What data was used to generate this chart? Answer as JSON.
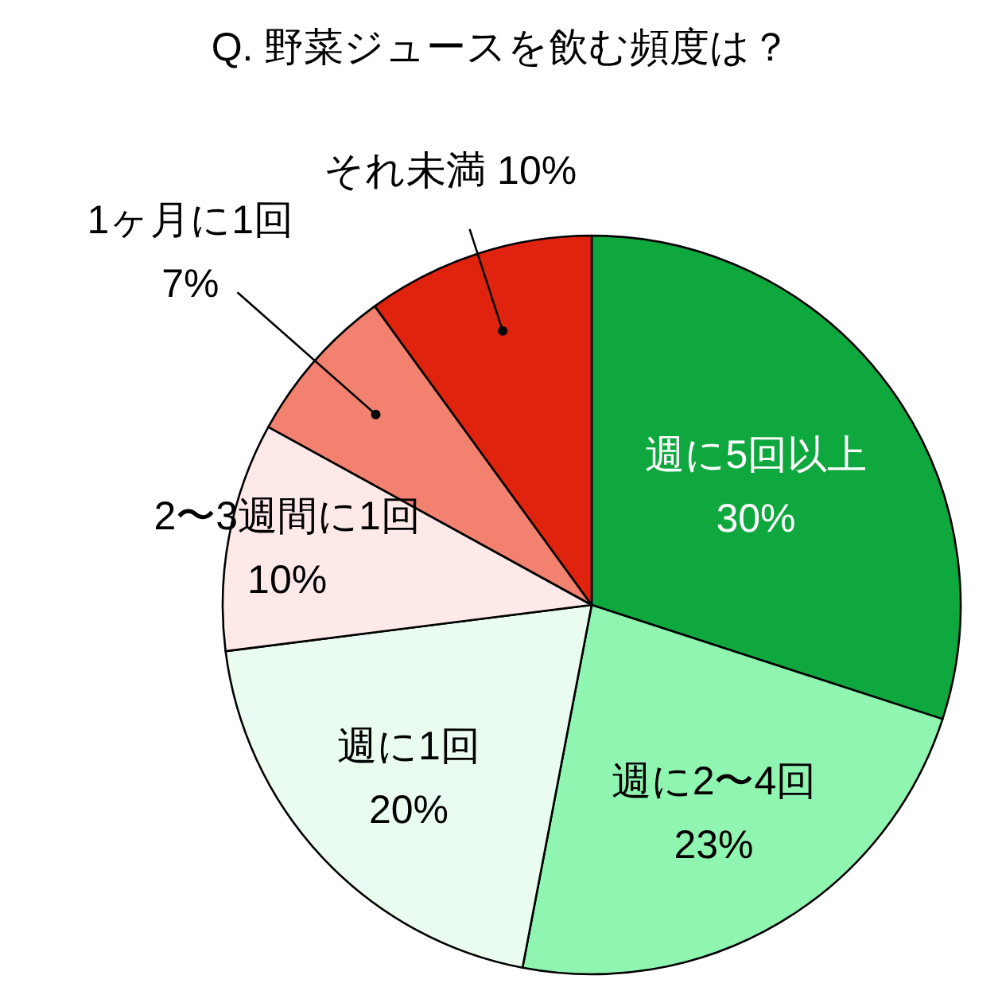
{
  "chart_data": {
    "type": "pie",
    "title": "Q. 野菜ジュースを飲む頻度は？",
    "categories": [
      "週に5回以上",
      "週に2〜4回",
      "週に1回",
      "2〜3週間に1回",
      "1ヶ月に1回",
      "それ未満"
    ],
    "values": [
      30,
      23,
      20,
      10,
      7,
      10
    ],
    "value_labels": [
      "30%",
      "23%",
      "20%",
      "10%",
      "7%",
      "10%"
    ],
    "colors": [
      "#0fa83e",
      "#8ff5b1",
      "#eafcef",
      "#fde9e7",
      "#f3816f",
      "#e0230f"
    ]
  }
}
